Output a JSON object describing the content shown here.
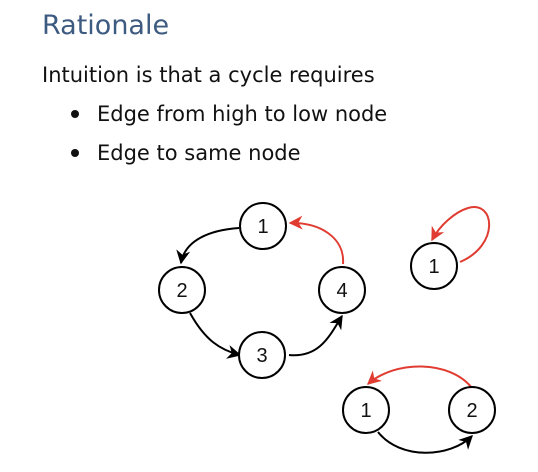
{
  "slide": {
    "title": "Rationale",
    "intro": "Intuition is that a cycle requires",
    "bullets": [
      "Edge from high to low node",
      "Edge to same node"
    ]
  },
  "diagram": {
    "edge_color": "#000000",
    "highlight_color": "#e03c31",
    "graph_a": {
      "nodes": [
        "1",
        "2",
        "3",
        "4"
      ],
      "edges": [
        {
          "from": "1",
          "to": "2",
          "color": "black"
        },
        {
          "from": "2",
          "to": "3",
          "color": "black"
        },
        {
          "from": "3",
          "to": "4",
          "color": "black"
        },
        {
          "from": "4",
          "to": "1",
          "color": "red"
        }
      ]
    },
    "graph_b": {
      "nodes": [
        "1"
      ],
      "edges": [
        {
          "from": "1",
          "to": "1",
          "color": "red"
        }
      ]
    },
    "graph_c": {
      "nodes": [
        "1",
        "2"
      ],
      "edges": [
        {
          "from": "1",
          "to": "2",
          "color": "black"
        },
        {
          "from": "2",
          "to": "1",
          "color": "red"
        }
      ]
    }
  }
}
